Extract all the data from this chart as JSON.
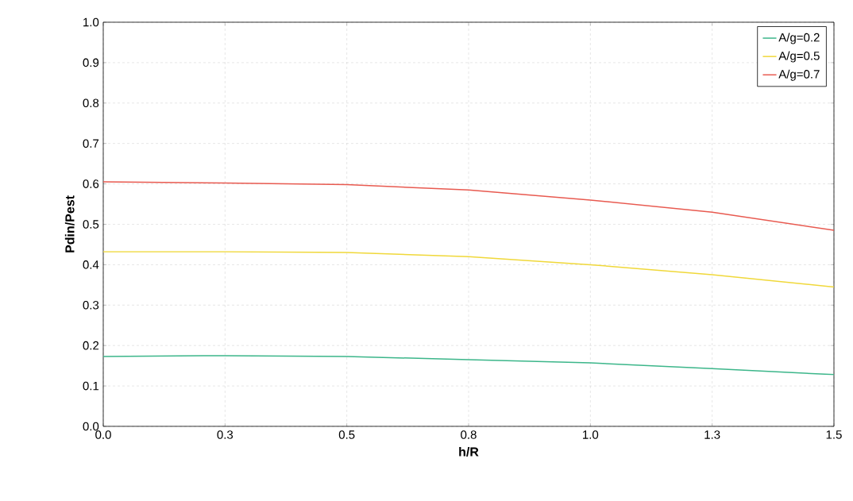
{
  "chart_data": {
    "type": "line",
    "xlabel": "h/R",
    "ylabel": "Pdin/Pest",
    "x": [
      0,
      0.25,
      0.5,
      0.75,
      1.0,
      1.25,
      1.5
    ],
    "series": [
      {
        "name": "A/g=0.2",
        "color": "#3cb68a",
        "values": [
          0.173,
          0.175,
          0.173,
          0.165,
          0.157,
          0.143,
          0.128
        ]
      },
      {
        "name": "A/g=0.5",
        "color": "#f0d83a",
        "values": [
          0.432,
          0.432,
          0.43,
          0.42,
          0.4,
          0.375,
          0.345
        ]
      },
      {
        "name": "A/g=0.7",
        "color": "#e85a50",
        "values": [
          0.605,
          0.602,
          0.598,
          0.585,
          0.56,
          0.53,
          0.485
        ]
      }
    ],
    "xlim": [
      0,
      1.5
    ],
    "ylim": [
      0,
      1.0
    ],
    "xticks": [
      {
        "value": 0,
        "label": "0.0"
      },
      {
        "value": 0.25,
        "label": "0.3"
      },
      {
        "value": 0.5,
        "label": "0.5"
      },
      {
        "value": 0.75,
        "label": "0.8"
      },
      {
        "value": 1.0,
        "label": "1.0"
      },
      {
        "value": 1.25,
        "label": "1.3"
      },
      {
        "value": 1.5,
        "label": "1.5"
      }
    ],
    "yticks": [
      {
        "value": 0,
        "label": "0.0"
      },
      {
        "value": 0.1,
        "label": "0.1"
      },
      {
        "value": 0.2,
        "label": "0.2"
      },
      {
        "value": 0.3,
        "label": "0.3"
      },
      {
        "value": 0.4,
        "label": "0.4"
      },
      {
        "value": 0.5,
        "label": "0.5"
      },
      {
        "value": 0.6,
        "label": "0.6"
      },
      {
        "value": 0.7,
        "label": "0.7"
      },
      {
        "value": 0.8,
        "label": "0.8"
      },
      {
        "value": 0.9,
        "label": "0.9"
      },
      {
        "value": 1.0,
        "label": "1.0"
      }
    ],
    "grid": true,
    "legend": "top right",
    "marker": "none",
    "line_style": "solid"
  }
}
